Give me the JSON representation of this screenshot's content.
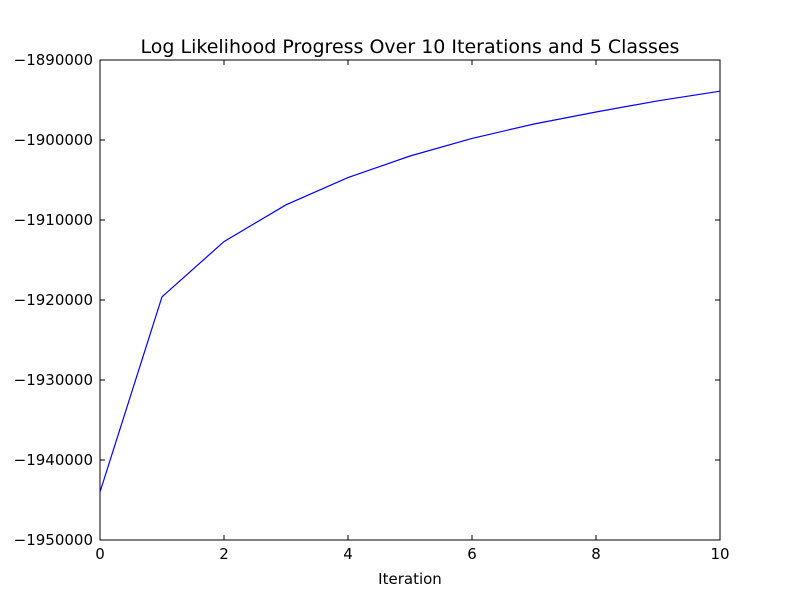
{
  "chart_data": {
    "type": "line",
    "title": "Log Likelihood Progress Over 10 Iterations and 5 Classes",
    "xlabel": "Iteration",
    "ylabel": "",
    "xlim": [
      0,
      10
    ],
    "ylim": [
      -1950000,
      -1890000
    ],
    "x_ticks": [
      0,
      2,
      4,
      6,
      8,
      10
    ],
    "y_ticks": [
      -1950000,
      -1940000,
      -1930000,
      -1920000,
      -1910000,
      -1900000,
      -1890000
    ],
    "x_tick_labels": [
      "0",
      "2",
      "4",
      "6",
      "8",
      "10"
    ],
    "y_tick_labels": [
      "−1950000",
      "−1940000",
      "−1930000",
      "−1920000",
      "−1910000",
      "−1900000",
      "−1890000"
    ],
    "grid": false,
    "series": [
      {
        "color": "#0000ff",
        "x": [
          0,
          1,
          2,
          3,
          4,
          5,
          6,
          7,
          8,
          9,
          10
        ],
        "y": [
          -1944000,
          -1919600,
          -1912700,
          -1908100,
          -1904700,
          -1902000,
          -1899800,
          -1898000,
          -1896500,
          -1895100,
          -1893900
        ]
      }
    ]
  }
}
